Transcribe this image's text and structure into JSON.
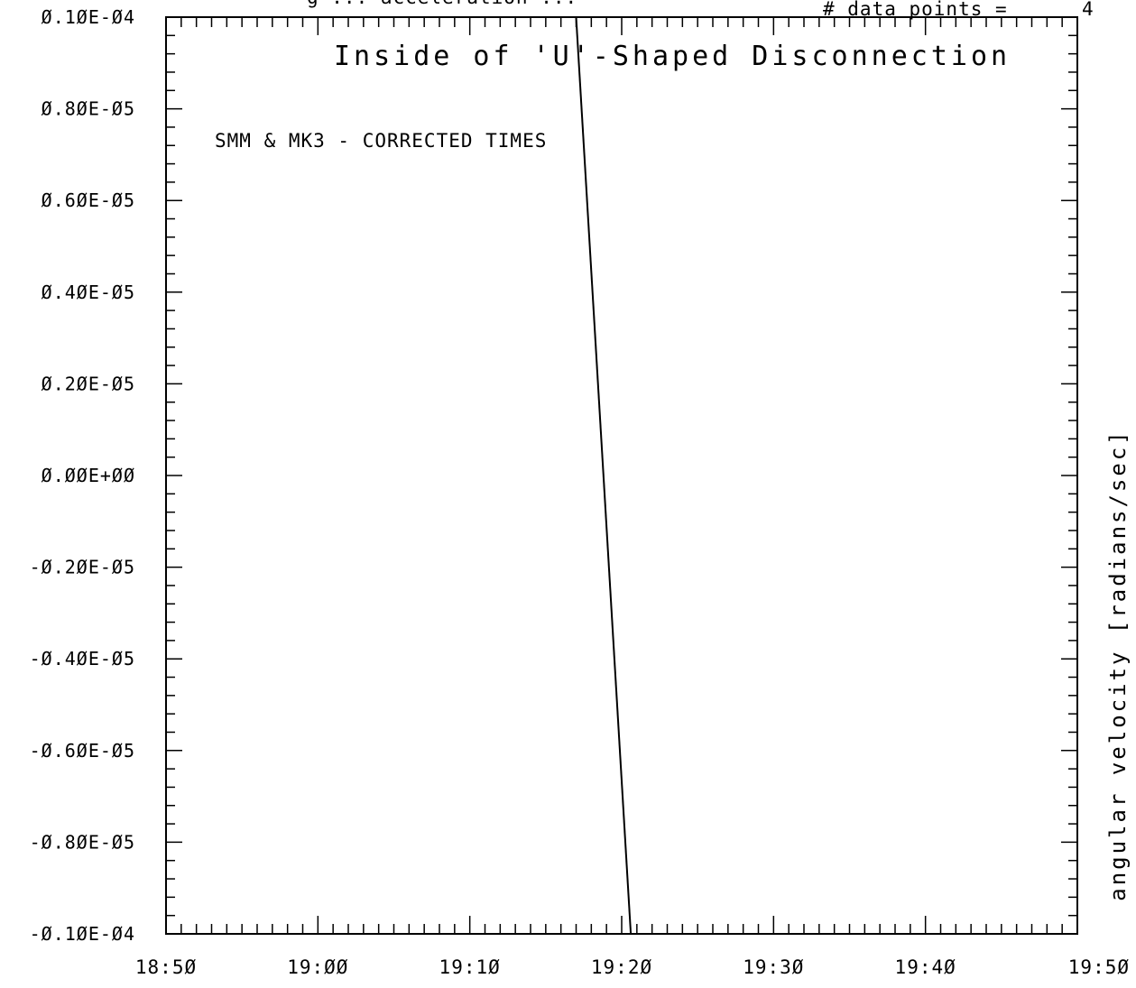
{
  "header": {
    "title_partial": "g  ...  acceleration  ...",
    "data_points_label": "# data points =",
    "data_points_value": "4"
  },
  "chart_data": {
    "type": "line",
    "annotation": "Inside of 'U'-Shaped Disconnection",
    "subtitle": "SMM & MK3 - CORRECTED TIMES",
    "ylabel": "angular velocity [radians/sec]",
    "xlabel": "",
    "x_unit": "time HH:MM",
    "xlim_minutes": [
      1130,
      1190
    ],
    "ylim": [
      -1e-05,
      1e-05
    ],
    "x_tick_labels": [
      "18:5Ø",
      "19:ØØ",
      "19:1Ø",
      "19:2Ø",
      "19:3Ø",
      "19:4Ø",
      "19:5Ø"
    ],
    "y_tick_labels": [
      "Ø.1ØE-Ø4",
      "Ø.8ØE-Ø5",
      "Ø.6ØE-Ø5",
      "Ø.4ØE-Ø5",
      "Ø.2ØE-Ø5",
      "Ø.ØØE+ØØ",
      "-Ø.2ØE-Ø5",
      "-Ø.4ØE-Ø5",
      "-Ø.6ØE-Ø5",
      "-Ø.8ØE-Ø5",
      "-Ø.1ØE-Ø4"
    ],
    "series": [
      {
        "x_minutes": [
          1157.0,
          1160.6
        ],
        "x": [
          "19:17.0",
          "19:20.6"
        ],
        "y": [
          1e-05,
          -1e-05
        ]
      }
    ],
    "grid": false,
    "colors": {
      "line": "#000000",
      "background": "#ffffff"
    }
  }
}
